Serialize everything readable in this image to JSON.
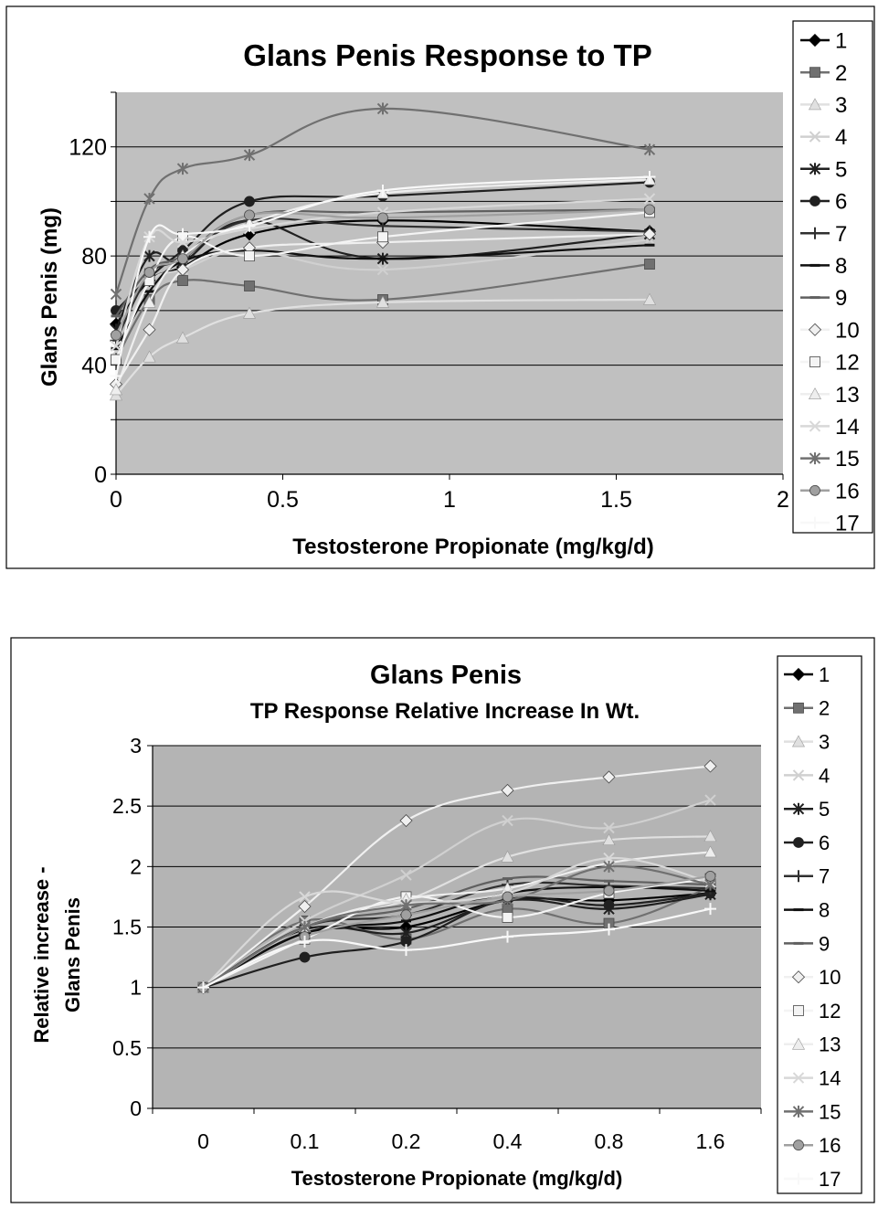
{
  "chart_data": [
    {
      "type": "line",
      "title": "Glans Penis Response to TP",
      "xlabel": "Testosterone Propionate (mg/kg/d)",
      "ylabel": "Glans Penis (mg)",
      "xlim": [
        0,
        2
      ],
      "ylim": [
        0,
        140
      ],
      "x_ticks": [
        "0",
        "0.5",
        "1",
        "1.5",
        "2"
      ],
      "x_tick_values": [
        0,
        0.5,
        1,
        1.5,
        2
      ],
      "y_ticks": [
        "0",
        "40",
        "80",
        "120"
      ],
      "y_tick_values": [
        0,
        40,
        80,
        120
      ],
      "y_gridlines": [
        20,
        40,
        60,
        80,
        100,
        120
      ],
      "grid": true,
      "legend_position": "right",
      "plot_background": "#c0c0c0",
      "x": [
        0,
        0.1,
        0.2,
        0.4,
        0.8,
        1.6
      ],
      "series": [
        {
          "name": "1",
          "color": "#000000",
          "marker": "diamond",
          "values": [
            55,
            71,
            76,
            88,
            93,
            89
          ]
        },
        {
          "name": "2",
          "color": "#707070",
          "marker": "square",
          "values": [
            42,
            64,
            71,
            69,
            64,
            77
          ]
        },
        {
          "name": "3",
          "color": "#e0e0e0",
          "marker": "triangle",
          "values": [
            29,
            43,
            50,
            59,
            63,
            64
          ]
        },
        {
          "name": "4",
          "color": "#d0d0d0",
          "marker": "x",
          "values": [
            45,
            70,
            75,
            82,
            75,
            86
          ]
        },
        {
          "name": "5",
          "color": "#202020",
          "marker": "star",
          "values": [
            53,
            80,
            78,
            93,
            79,
            88
          ]
        },
        {
          "name": "6",
          "color": "#202020",
          "marker": "circle",
          "values": [
            60,
            72,
            82,
            100,
            102,
            107
          ]
        },
        {
          "name": "7",
          "color": "#303030",
          "marker": "plus",
          "values": [
            49,
            73,
            79,
            93,
            91,
            89
          ]
        },
        {
          "name": "8",
          "color": "#101010",
          "marker": "dash",
          "values": [
            46,
            67,
            78,
            82,
            79,
            84
          ]
        },
        {
          "name": "9",
          "color": "#606060",
          "marker": "dash",
          "values": [
            58,
            75,
            80,
            95,
            96,
            97
          ]
        },
        {
          "name": "10",
          "color": "#f0f0f0",
          "marker": "diamond",
          "values": [
            33,
            53,
            75,
            83,
            85,
            88
          ]
        },
        {
          "name": "12",
          "color": "#f4f4f4",
          "marker": "square",
          "values": [
            42,
            71,
            87,
            80,
            87,
            96
          ]
        },
        {
          "name": "13",
          "color": "#eeeeee",
          "marker": "triangle",
          "values": [
            31,
            63,
            80,
            92,
            103,
            108
          ]
        },
        {
          "name": "14",
          "color": "#d8d8d8",
          "marker": "x",
          "values": [
            47,
            87,
            85,
            90,
            96,
            101
          ]
        },
        {
          "name": "15",
          "color": "#707070",
          "marker": "star",
          "values": [
            66,
            101,
            112,
            117,
            134,
            119
          ]
        },
        {
          "name": "16",
          "color": "#a0a0a0",
          "marker": "circle",
          "values": [
            51,
            74,
            79,
            95,
            94,
            97
          ]
        },
        {
          "name": "17",
          "color": "#f8f8f8",
          "marker": "plus",
          "values": [
            36,
            87,
            88,
            91,
            104,
            109
          ]
        }
      ]
    },
    {
      "type": "line",
      "title": "Glans Penis",
      "subtitle": "TP Response Relative Increase In Wt.",
      "xlabel": "Testosterone Propionate (mg/kg/d)",
      "ylabel": "Relative increase - Glans Penis",
      "ylabel_lines": [
        "Relative increase -",
        "Glans Penis"
      ],
      "categories": [
        "0",
        "0.1",
        "0.2",
        "0.4",
        "0.8",
        "1.6"
      ],
      "ylim": [
        0,
        3
      ],
      "y_ticks": [
        "0",
        "0.5",
        "1",
        "1.5",
        "2",
        "2.5",
        "3"
      ],
      "y_tick_values": [
        0,
        0.5,
        1,
        1.5,
        2,
        2.5,
        3
      ],
      "y_gridlines": [
        0.5,
        1,
        1.5,
        2,
        2.5,
        3
      ],
      "grid": true,
      "legend_position": "right",
      "plot_background": "#b4b4b4",
      "series": [
        {
          "name": "1",
          "color": "#000000",
          "marker": "diamond",
          "values": [
            1,
            1.45,
            1.5,
            1.72,
            1.72,
            1.78
          ]
        },
        {
          "name": "2",
          "color": "#707070",
          "marker": "square",
          "values": [
            1,
            1.55,
            1.4,
            1.65,
            1.53,
            1.83
          ]
        },
        {
          "name": "3",
          "color": "#e0e0e0",
          "marker": "triangle",
          "values": [
            1,
            1.5,
            1.72,
            2.08,
            2.22,
            2.25
          ]
        },
        {
          "name": "4",
          "color": "#d0d0d0",
          "marker": "x",
          "values": [
            1,
            1.55,
            1.93,
            2.38,
            2.32,
            2.55
          ]
        },
        {
          "name": "5",
          "color": "#202020",
          "marker": "star",
          "values": [
            1,
            1.48,
            1.45,
            1.72,
            1.65,
            1.77
          ]
        },
        {
          "name": "6",
          "color": "#202020",
          "marker": "circle",
          "values": [
            1,
            1.25,
            1.38,
            1.73,
            1.68,
            1.78
          ]
        },
        {
          "name": "7",
          "color": "#303030",
          "marker": "plus",
          "values": [
            1,
            1.5,
            1.6,
            1.85,
            1.84,
            1.82
          ]
        },
        {
          "name": "8",
          "color": "#101010",
          "marker": "dash",
          "values": [
            1,
            1.45,
            1.55,
            1.78,
            1.83,
            1.8
          ]
        },
        {
          "name": "9",
          "color": "#606060",
          "marker": "dash",
          "values": [
            1,
            1.5,
            1.65,
            1.9,
            1.88,
            1.85
          ]
        },
        {
          "name": "10",
          "color": "#f0f0f0",
          "marker": "diamond",
          "values": [
            1,
            1.67,
            2.38,
            2.63,
            2.74,
            2.83
          ]
        },
        {
          "name": "12",
          "color": "#f4f4f4",
          "marker": "square",
          "values": [
            1,
            1.4,
            1.75,
            1.58,
            1.78,
            1.9
          ]
        },
        {
          "name": "13",
          "color": "#eeeeee",
          "marker": "triangle",
          "values": [
            1,
            1.5,
            1.73,
            1.82,
            2.03,
            2.12
          ]
        },
        {
          "name": "14",
          "color": "#d8d8d8",
          "marker": "x",
          "values": [
            1,
            1.75,
            1.7,
            1.78,
            2.07,
            1.87
          ]
        },
        {
          "name": "15",
          "color": "#707070",
          "marker": "star",
          "values": [
            1,
            1.5,
            1.68,
            1.72,
            2.0,
            1.85
          ]
        },
        {
          "name": "16",
          "color": "#a0a0a0",
          "marker": "circle",
          "values": [
            1,
            1.42,
            1.6,
            1.75,
            1.8,
            1.92
          ]
        },
        {
          "name": "17",
          "color": "#f8f8f8",
          "marker": "plus",
          "values": [
            1,
            1.38,
            1.31,
            1.42,
            1.48,
            1.65
          ]
        }
      ]
    }
  ]
}
